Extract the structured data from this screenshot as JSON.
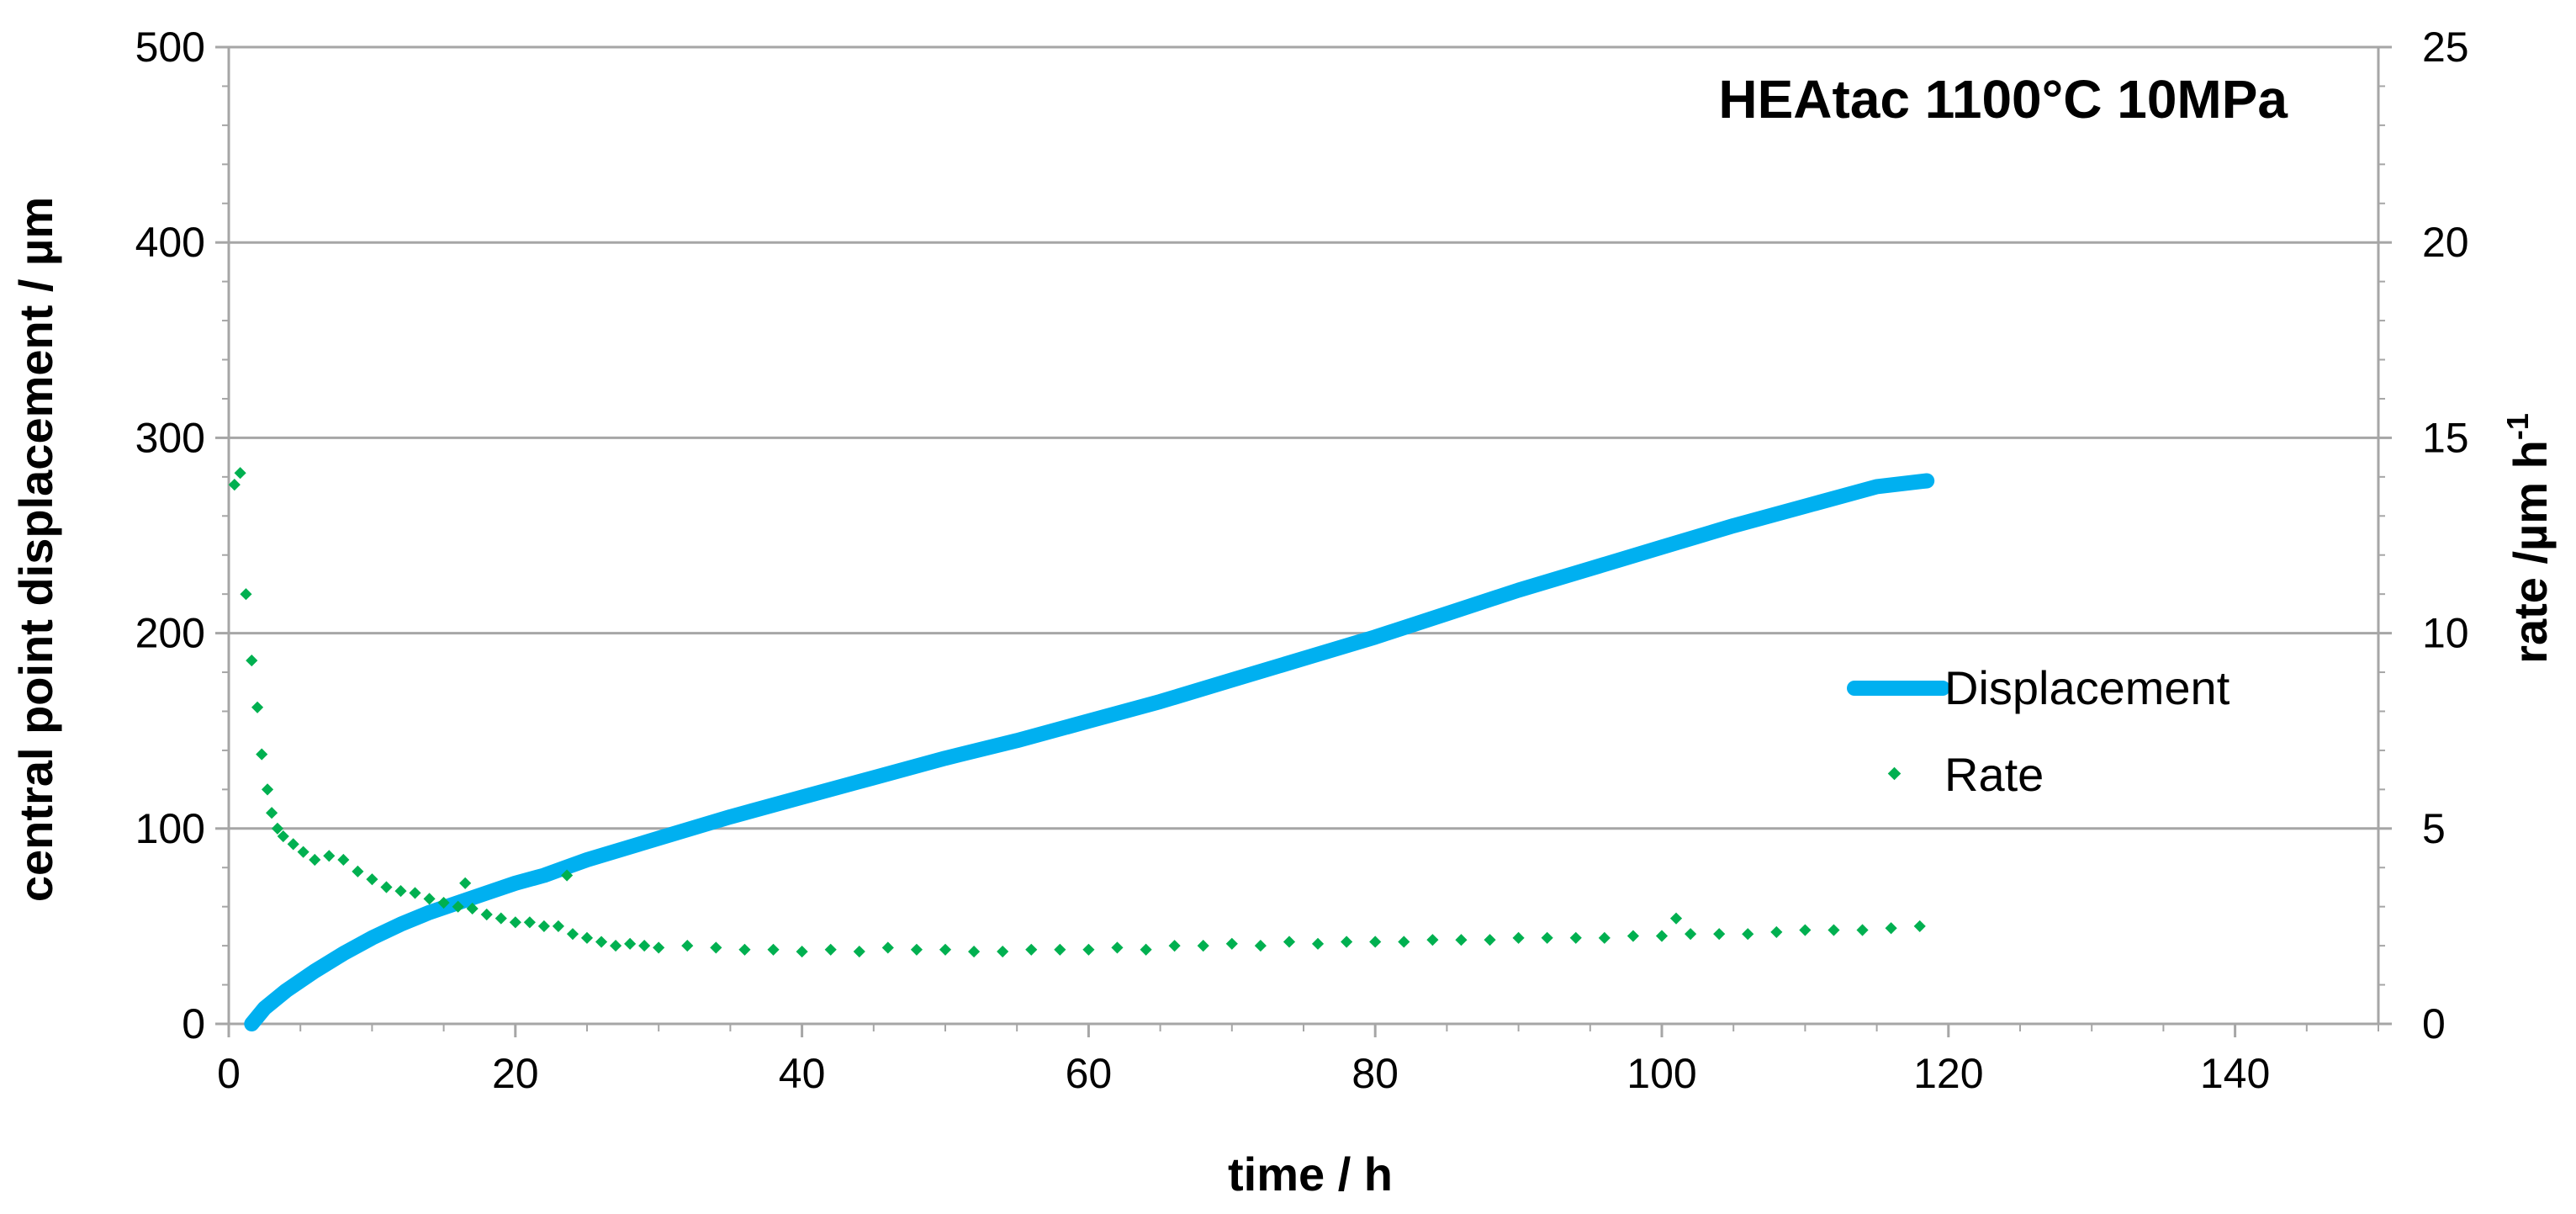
{
  "chart_data": {
    "type": "line",
    "title": "HEAtac 1100°C 10MPa",
    "xlabel": "time / h",
    "ylabel": "central point displacement / µm",
    "y2label_main": "rate /µm h",
    "y2label_sup": "-1",
    "xlim": [
      0,
      150
    ],
    "ylim": [
      0,
      500
    ],
    "y2lim": [
      0,
      25
    ],
    "xticks": [
      "0",
      "20",
      "40",
      "60",
      "80",
      "100",
      "120",
      "140"
    ],
    "yticks": [
      "0",
      "100",
      "200",
      "300",
      "400",
      "500"
    ],
    "y2ticks": [
      "0",
      "5",
      "10",
      "15",
      "20",
      "25"
    ],
    "grid": "horizontal",
    "legend_position": "right",
    "series": [
      {
        "name": "Displacement",
        "axis": "left",
        "style": "line",
        "color": "#00B0F0",
        "x": [
          1.6,
          2.5,
          4,
          6,
          8,
          10,
          12,
          14,
          16,
          18,
          20,
          22,
          23.5,
          25,
          30,
          35,
          40,
          45,
          50,
          55,
          60,
          65,
          70,
          75,
          80,
          85,
          90,
          95,
          100,
          105,
          110,
          115,
          118.5
        ],
        "y": [
          0,
          8,
          17,
          27,
          36,
          44,
          51,
          57,
          62,
          67,
          72,
          76,
          80,
          84,
          95,
          106,
          116,
          126,
          136,
          145,
          155,
          165,
          176,
          187,
          198,
          210,
          222,
          233,
          244,
          255,
          265,
          275,
          278
        ]
      },
      {
        "name": "Rate",
        "axis": "right",
        "style": "markers",
        "color": "#00B050",
        "x": [
          0.4,
          0.8,
          1.2,
          1.6,
          2.0,
          2.3,
          2.7,
          3.0,
          3.4,
          3.8,
          4.5,
          5.2,
          6.0,
          7.0,
          8.0,
          9.0,
          10,
          11,
          12,
          13,
          14,
          15,
          16,
          16.5,
          17,
          18,
          19,
          20,
          21,
          22,
          23,
          23.6,
          24,
          25,
          26,
          27,
          28,
          29,
          30,
          32,
          34,
          36,
          38,
          40,
          42,
          44,
          46,
          48,
          50,
          52,
          54,
          56,
          58,
          60,
          62,
          64,
          66,
          68,
          70,
          72,
          74,
          76,
          78,
          80,
          82,
          84,
          86,
          88,
          90,
          92,
          94,
          96,
          98,
          100,
          101,
          102,
          104,
          106,
          108,
          110,
          112,
          114,
          116,
          118
        ],
        "y": [
          13.8,
          14.1,
          11.0,
          9.3,
          8.1,
          6.9,
          6.0,
          5.4,
          5.0,
          4.8,
          4.6,
          4.4,
          4.2,
          4.3,
          4.2,
          3.9,
          3.7,
          3.5,
          3.4,
          3.35,
          3.2,
          3.1,
          3.0,
          3.6,
          2.95,
          2.8,
          2.7,
          2.6,
          2.6,
          2.5,
          2.5,
          3.8,
          2.3,
          2.2,
          2.1,
          2.0,
          2.05,
          2.0,
          1.95,
          2.0,
          1.95,
          1.9,
          1.9,
          1.85,
          1.9,
          1.85,
          1.95,
          1.9,
          1.9,
          1.85,
          1.85,
          1.9,
          1.9,
          1.9,
          1.95,
          1.9,
          2.0,
          2.0,
          2.05,
          2.0,
          2.1,
          2.05,
          2.1,
          2.1,
          2.1,
          2.15,
          2.15,
          2.15,
          2.2,
          2.2,
          2.2,
          2.2,
          2.25,
          2.25,
          2.7,
          2.3,
          2.3,
          2.3,
          2.35,
          2.4,
          2.4,
          2.4,
          2.45,
          2.5
        ]
      }
    ]
  }
}
